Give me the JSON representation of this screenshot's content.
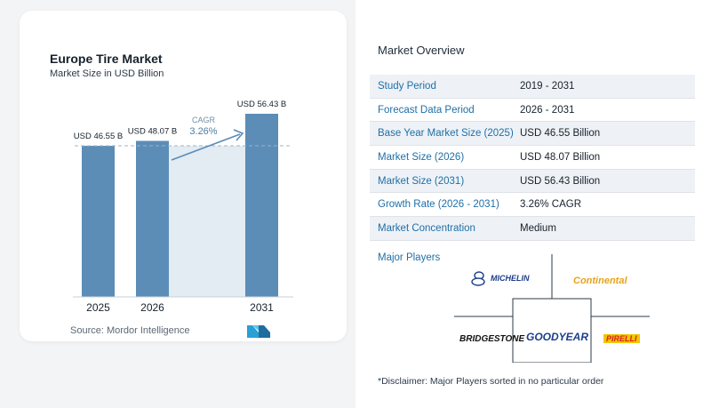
{
  "chart_data": {
    "type": "bar",
    "title": "Europe Tire Market",
    "subtitle": "Market Size in USD Billion",
    "categories": [
      "2025",
      "2026",
      "2031"
    ],
    "values": [
      46.55,
      48.07,
      56.43
    ],
    "value_labels": [
      "USD 46.55 B",
      "USD 48.07 B",
      "USD 56.43 B"
    ],
    "cagr_label": "CAGR",
    "cagr_value": "3.26%",
    "ylim": [
      0,
      63
    ],
    "bar_color": "#5b8db7",
    "source": "Source: Mordor Intelligence"
  },
  "overview": {
    "title": "Market Overview",
    "rows": [
      {
        "key": "Study Period",
        "value": "2019 - 2031"
      },
      {
        "key": "Forecast Data Period",
        "value": "2026 - 2031"
      },
      {
        "key": "Base Year Market Size (2025)",
        "value": "USD 46.55 Billion"
      },
      {
        "key": "Market Size (2026)",
        "value": "USD 48.07 Billion"
      },
      {
        "key": "Market Size (2031)",
        "value": "USD 56.43 Billion"
      },
      {
        "key": "Growth Rate (2026 - 2031)",
        "value": "3.26% CAGR"
      },
      {
        "key": "Market Concentration",
        "value": "Medium"
      }
    ]
  },
  "players": {
    "title": "Major Players",
    "names": [
      "MICHELIN",
      "Continental",
      "BRIDGESTONE",
      "GOODYEAR",
      "PIRELLI"
    ]
  },
  "disclaimer": "*Disclaimer: Major Players sorted in no particular order",
  "colors": {
    "accent": "#1f6fa8",
    "bar": "#5b8db7",
    "region": "#e3ebf3"
  }
}
